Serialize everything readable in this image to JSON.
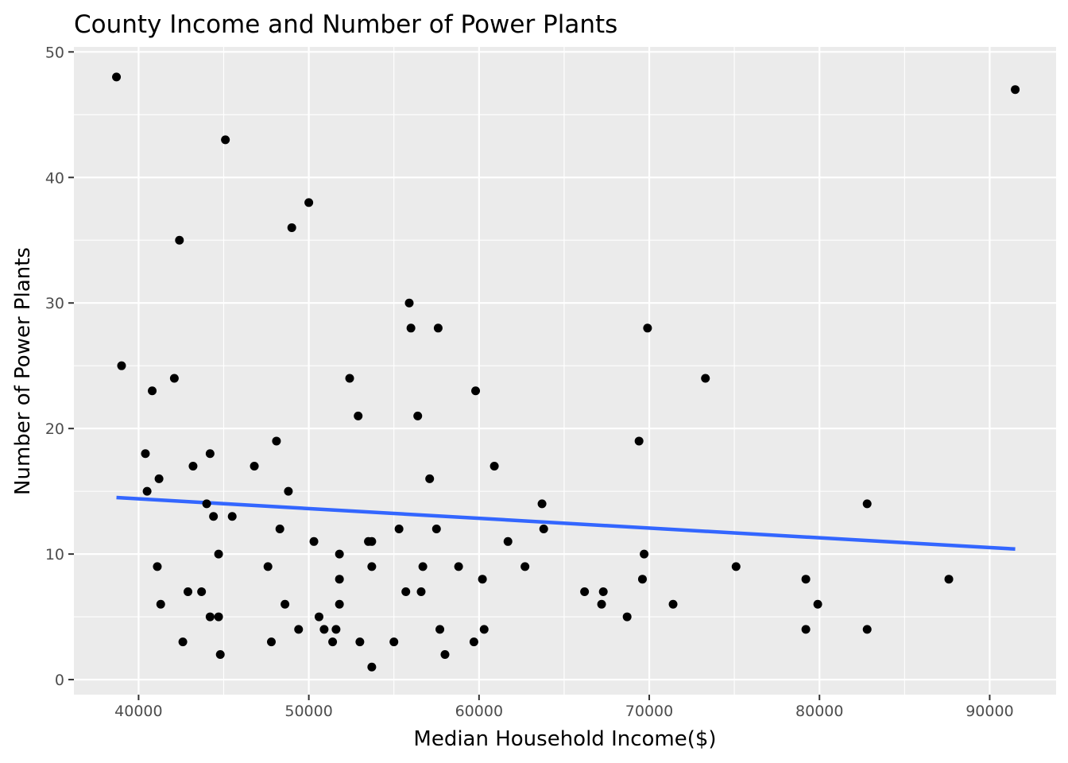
{
  "chart_data": {
    "type": "scatter",
    "title": "County Income and Number of Power Plants",
    "xlabel": "Median Household Income($)",
    "ylabel": "Number of Power Plants",
    "xlim": [
      36200,
      93900
    ],
    "ylim": [
      -1.2,
      50.4
    ],
    "x_ticks": [
      40000,
      50000,
      60000,
      70000,
      80000,
      90000
    ],
    "x_tick_labels": [
      "40000",
      "50000",
      "60000",
      "70000",
      "80000",
      "90000"
    ],
    "y_ticks": [
      0,
      10,
      20,
      30,
      40,
      50
    ],
    "y_tick_labels": [
      "0",
      "10",
      "20",
      "30",
      "40",
      "50"
    ],
    "grid": true,
    "legend": "none",
    "colors": {
      "panel": "#ebebeb",
      "grid_major": "#ffffff",
      "point": "#000000",
      "trend_line": "#3366ff",
      "tick_label": "#4d4d4d",
      "tick_mark": "#333333"
    },
    "points": [
      [
        38700,
        48
      ],
      [
        91500,
        47
      ],
      [
        45100,
        43
      ],
      [
        50000,
        38
      ],
      [
        49000,
        36
      ],
      [
        42400,
        35
      ],
      [
        55900,
        30
      ],
      [
        56000,
        28
      ],
      [
        57600,
        28
      ],
      [
        69900,
        28
      ],
      [
        39000,
        25
      ],
      [
        52400,
        24
      ],
      [
        42100,
        24
      ],
      [
        73300,
        24
      ],
      [
        40800,
        23
      ],
      [
        59800,
        23
      ],
      [
        52900,
        21
      ],
      [
        56400,
        21
      ],
      [
        48100,
        19
      ],
      [
        69400,
        19
      ],
      [
        40400,
        18
      ],
      [
        44200,
        18
      ],
      [
        43200,
        17
      ],
      [
        46800,
        17
      ],
      [
        60900,
        17
      ],
      [
        41200,
        16
      ],
      [
        57100,
        16
      ],
      [
        40500,
        15
      ],
      [
        48800,
        15
      ],
      [
        44000,
        14
      ],
      [
        63700,
        14
      ],
      [
        82800,
        14
      ],
      [
        44400,
        13
      ],
      [
        45500,
        13
      ],
      [
        48300,
        12
      ],
      [
        55300,
        12
      ],
      [
        57500,
        12
      ],
      [
        63800,
        12
      ],
      [
        50300,
        11
      ],
      [
        53500,
        11
      ],
      [
        53700,
        11
      ],
      [
        61700,
        11
      ],
      [
        44700,
        10
      ],
      [
        51800,
        10
      ],
      [
        69700,
        10
      ],
      [
        41100,
        9
      ],
      [
        47600,
        9
      ],
      [
        53700,
        9
      ],
      [
        56700,
        9
      ],
      [
        58800,
        9
      ],
      [
        62700,
        9
      ],
      [
        75100,
        9
      ],
      [
        51800,
        8
      ],
      [
        60200,
        8
      ],
      [
        69600,
        8
      ],
      [
        79200,
        8
      ],
      [
        87600,
        8
      ],
      [
        42900,
        7
      ],
      [
        43700,
        7
      ],
      [
        55700,
        7
      ],
      [
        56600,
        7
      ],
      [
        66200,
        7
      ],
      [
        67300,
        7
      ],
      [
        41300,
        6
      ],
      [
        48600,
        6
      ],
      [
        51800,
        6
      ],
      [
        67200,
        6
      ],
      [
        71400,
        6
      ],
      [
        79900,
        6
      ],
      [
        44200,
        5
      ],
      [
        44700,
        5
      ],
      [
        50600,
        5
      ],
      [
        68700,
        5
      ],
      [
        49400,
        4
      ],
      [
        50900,
        4
      ],
      [
        51600,
        4
      ],
      [
        57700,
        4
      ],
      [
        60300,
        4
      ],
      [
        79200,
        4
      ],
      [
        82800,
        4
      ],
      [
        42600,
        3
      ],
      [
        47800,
        3
      ],
      [
        51400,
        3
      ],
      [
        53000,
        3
      ],
      [
        55000,
        3
      ],
      [
        59700,
        3
      ],
      [
        44800,
        2
      ],
      [
        58000,
        2
      ],
      [
        53700,
        1
      ]
    ],
    "trend_line": {
      "x": [
        38700,
        91500
      ],
      "y": [
        14.5,
        10.4
      ]
    }
  }
}
